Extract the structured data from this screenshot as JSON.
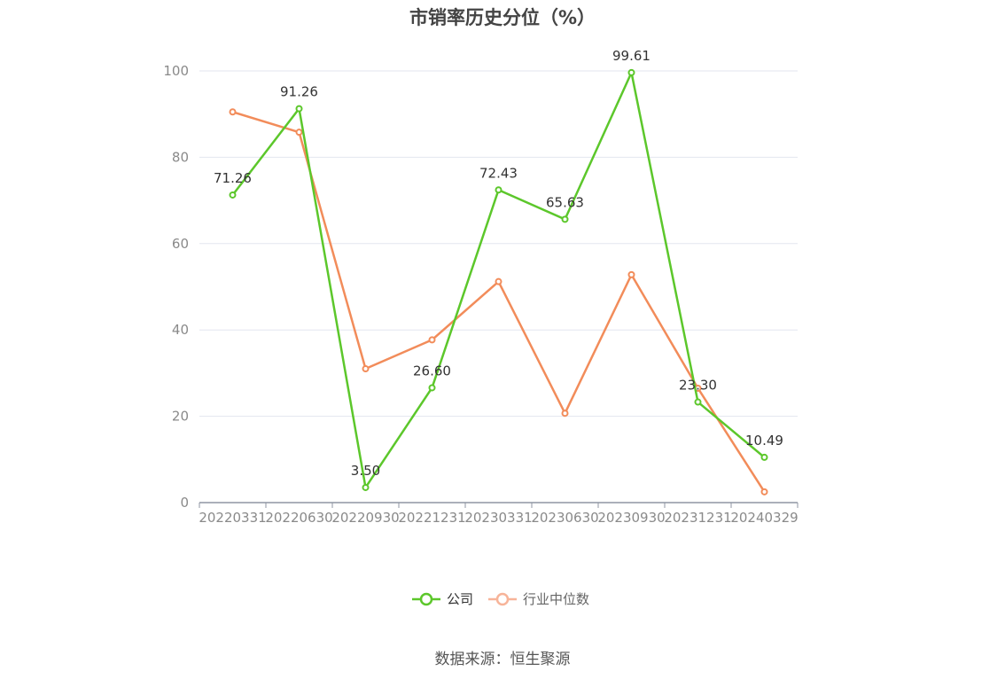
{
  "chart_data": {
    "type": "line",
    "title": "市销率历史分位（%）",
    "categories": [
      "20220331",
      "20220630",
      "20220930",
      "20221231",
      "20230331",
      "20230630",
      "20230930",
      "20231231",
      "20240329"
    ],
    "ylim": [
      0,
      100
    ],
    "yticks": [
      0,
      20,
      40,
      60,
      80,
      100
    ],
    "grid": true,
    "legend_position": "bottom",
    "series": [
      {
        "name": "公司",
        "color": "#5cc72b",
        "values": [
          71.26,
          91.26,
          3.5,
          26.6,
          72.43,
          65.63,
          99.61,
          23.3,
          10.49
        ],
        "labels": [
          "71.26",
          "91.26",
          "3.50",
          "26.60",
          "72.43",
          "65.63",
          "99.61",
          "23.30",
          "10.49"
        ]
      },
      {
        "name": "行业中位数",
        "color": "#f28c5a",
        "values": [
          90.5,
          85.8,
          31.0,
          37.7,
          51.2,
          20.7,
          52.8,
          26.5,
          2.5
        ]
      }
    ]
  },
  "source": "数据来源：恒生聚源"
}
